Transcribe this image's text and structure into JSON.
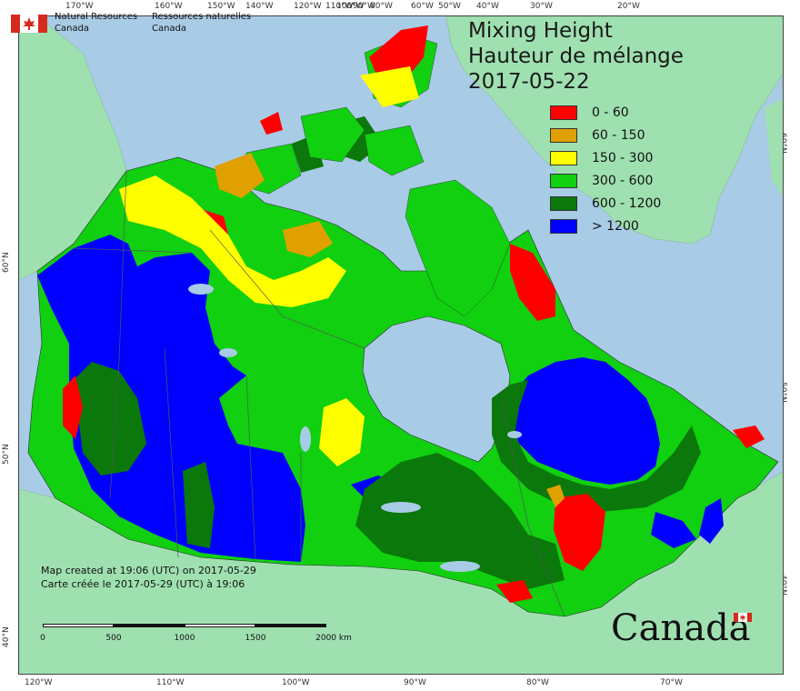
{
  "map": {
    "title_en": "Mixing Height",
    "title_fr": "Hauteur de mélange",
    "date": "2017-05-22",
    "agency_en": [
      "Natural Resources",
      "Canada"
    ],
    "agency_fr": [
      "Ressources naturelles",
      "Canada"
    ],
    "created_en": "Map created at 19:06 (UTC) on 2017-05-29",
    "created_fr": "Carte créée le 2017-05-29 (UTC) à 19:06",
    "wordmark": "Canada",
    "legend": [
      {
        "label": "0 - 60",
        "color": "#ff0000"
      },
      {
        "label": "60 - 150",
        "color": "#e0a000"
      },
      {
        "label": "150 - 300",
        "color": "#ffff00"
      },
      {
        "label": "300 - 600",
        "color": "#10d010"
      },
      {
        "label": "600 - 1200",
        "color": "#0a780a"
      },
      {
        "label": "> 1200",
        "color": "#0000ff"
      }
    ],
    "scale_labels": [
      "0",
      "500",
      "1000",
      "1500",
      "2000 km"
    ],
    "ticks_top": [
      "170°W",
      "160°W",
      "150°W",
      "140°W",
      "120°W",
      "110°W",
      "100°W",
      "90°W",
      "80°W",
      "60°W",
      "50°W",
      "40°W",
      "30°W",
      "20°W"
    ],
    "ticks_bottom": [
      "120°W",
      "110°W",
      "100°W",
      "90°W",
      "80°W",
      "70°W"
    ],
    "ticks_left": [
      "60°N",
      "50°N",
      "40°N"
    ],
    "ticks_right": [
      "60°N",
      "50°N",
      "40°N"
    ],
    "colors": {
      "ocean": "#a8cbe6",
      "land_other": "#9fe0b0",
      "boundary": "#555555"
    }
  }
}
